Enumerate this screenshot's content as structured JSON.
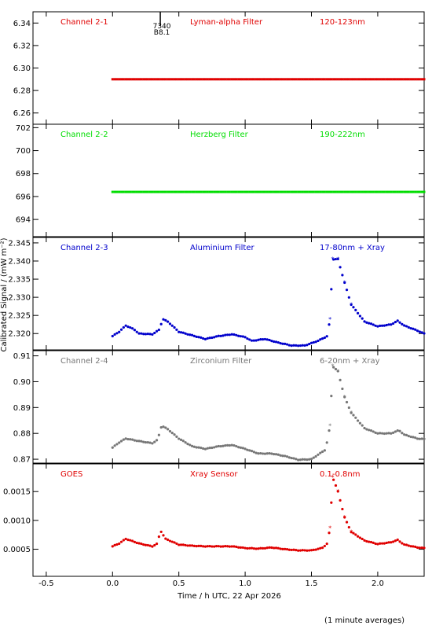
{
  "figure": {
    "xlabel": "Time / h UTC, 22 Apr 2026",
    "ylabel": "Calibrated Signal / (mW m⁻²)",
    "footnote": "(1 minute averages)",
    "xlim": [
      -0.6,
      2.35
    ],
    "xticks": [
      "-0.5",
      "0.0",
      "0.5",
      "1.0",
      "1.5",
      "2.0"
    ],
    "event_marker": {
      "x": 0.36,
      "labels": [
        "7340",
        "B8.1"
      ]
    }
  },
  "chart_data": [
    {
      "type": "scatter",
      "title": "Channel 2-1",
      "filter": "Lyman-alpha Filter",
      "band": "120-123nm",
      "color": "#e00000",
      "ylim": [
        6.25,
        6.35
      ],
      "yticks": [
        "6.26",
        "6.28",
        "6.30",
        "6.32",
        "6.34"
      ],
      "shape": "flat",
      "level": 6.29,
      "x_start": 0.0
    },
    {
      "type": "scatter",
      "title": "Channel 2-2",
      "filter": "Herzberg Filter",
      "band": "190-222nm",
      "color": "#00dd00",
      "ylim": [
        692.5,
        702.3
      ],
      "yticks": [
        "694",
        "696",
        "698",
        "700",
        "702"
      ],
      "shape": "flat",
      "level": 696.4,
      "x_start": 0.0
    },
    {
      "type": "scatter",
      "title": "Channel 2-3",
      "filter": "Aluminium Filter",
      "band": "17-80nm + Xray",
      "color": "#0000cc",
      "ylim": [
        2.3155,
        2.3465
      ],
      "yticks": [
        "2.320",
        "2.325",
        "2.330",
        "2.335",
        "2.340",
        "2.345"
      ],
      "shape": "flare",
      "x_start": 0.0,
      "profile": [
        [
          0.0,
          2.3193
        ],
        [
          0.05,
          2.3205
        ],
        [
          0.1,
          2.3222
        ],
        [
          0.16,
          2.3212
        ],
        [
          0.2,
          2.32
        ],
        [
          0.3,
          2.3198
        ],
        [
          0.35,
          2.321
        ],
        [
          0.38,
          2.324
        ],
        [
          0.42,
          2.3232
        ],
        [
          0.5,
          2.3205
        ],
        [
          0.6,
          2.3195
        ],
        [
          0.7,
          2.3185
        ],
        [
          0.8,
          2.3193
        ],
        [
          0.9,
          2.3198
        ],
        [
          1.0,
          2.319
        ],
        [
          1.05,
          2.318
        ],
        [
          1.15,
          2.3185
        ],
        [
          1.25,
          2.3175
        ],
        [
          1.35,
          2.3167
        ],
        [
          1.45,
          2.3167
        ],
        [
          1.55,
          2.318
        ],
        [
          1.62,
          2.3193
        ],
        [
          1.64,
          2.324
        ],
        [
          1.66,
          2.3405
        ],
        [
          1.7,
          2.3405
        ],
        [
          1.75,
          2.334
        ],
        [
          1.8,
          2.328
        ],
        [
          1.9,
          2.3233
        ],
        [
          2.0,
          2.322
        ],
        [
          2.1,
          2.3225
        ],
        [
          2.15,
          2.3235
        ],
        [
          2.2,
          2.3222
        ],
        [
          2.3,
          2.3208
        ],
        [
          2.35,
          2.32
        ]
      ]
    },
    {
      "type": "scatter",
      "title": "Channel 2-4",
      "filter": "Zirconium Filter",
      "band": "6-20nm + Xray",
      "color": "#777777",
      "ylim": [
        0.8685,
        0.912
      ],
      "yticks": [
        "0.87",
        "0.88",
        "0.89",
        "0.90",
        "0.91"
      ],
      "shape": "flare",
      "x_start": 0.0,
      "profile": [
        [
          0.0,
          0.8745
        ],
        [
          0.05,
          0.8765
        ],
        [
          0.1,
          0.878
        ],
        [
          0.2,
          0.877
        ],
        [
          0.3,
          0.8762
        ],
        [
          0.34,
          0.8775
        ],
        [
          0.37,
          0.883
        ],
        [
          0.42,
          0.8815
        ],
        [
          0.5,
          0.878
        ],
        [
          0.6,
          0.875
        ],
        [
          0.7,
          0.874
        ],
        [
          0.8,
          0.875
        ],
        [
          0.9,
          0.8755
        ],
        [
          1.0,
          0.874
        ],
        [
          1.1,
          0.8722
        ],
        [
          1.2,
          0.8722
        ],
        [
          1.3,
          0.8712
        ],
        [
          1.4,
          0.8698
        ],
        [
          1.5,
          0.87
        ],
        [
          1.6,
          0.8735
        ],
        [
          1.62,
          0.877
        ],
        [
          1.64,
          0.883
        ],
        [
          1.66,
          0.906
        ],
        [
          1.7,
          0.904
        ],
        [
          1.75,
          0.894
        ],
        [
          1.8,
          0.888
        ],
        [
          1.9,
          0.882
        ],
        [
          2.0,
          0.88
        ],
        [
          2.1,
          0.88
        ],
        [
          2.16,
          0.8812
        ],
        [
          2.2,
          0.8795
        ],
        [
          2.3,
          0.878
        ],
        [
          2.35,
          0.8778
        ]
      ]
    },
    {
      "type": "scatter",
      "title": "GOES",
      "filter": "Xray Sensor",
      "band": "0.1-0.8nm",
      "color": "#e00000",
      "ylim": [
        3e-05,
        0.00198
      ],
      "yticks": [
        "0.0005",
        "0.0010",
        "0.0015"
      ],
      "shape": "flare",
      "x_start": 0.0,
      "profile": [
        [
          0.0,
          0.00055
        ],
        [
          0.05,
          0.0006
        ],
        [
          0.1,
          0.00068
        ],
        [
          0.2,
          0.0006
        ],
        [
          0.3,
          0.00055
        ],
        [
          0.34,
          0.0006
        ],
        [
          0.36,
          0.00083
        ],
        [
          0.4,
          0.00068
        ],
        [
          0.5,
          0.00058
        ],
        [
          0.6,
          0.00056
        ],
        [
          0.7,
          0.00055
        ],
        [
          0.8,
          0.00055
        ],
        [
          0.9,
          0.00055
        ],
        [
          1.0,
          0.00052
        ],
        [
          1.1,
          0.00051
        ],
        [
          1.2,
          0.00053
        ],
        [
          1.3,
          0.0005
        ],
        [
          1.4,
          0.00048
        ],
        [
          1.5,
          0.00048
        ],
        [
          1.58,
          0.00052
        ],
        [
          1.62,
          0.0006
        ],
        [
          1.64,
          0.00087
        ],
        [
          1.66,
          0.00175
        ],
        [
          1.7,
          0.0015
        ],
        [
          1.75,
          0.00105
        ],
        [
          1.8,
          0.0008
        ],
        [
          1.9,
          0.00065
        ],
        [
          2.0,
          0.00059
        ],
        [
          2.1,
          0.00062
        ],
        [
          2.15,
          0.00066
        ],
        [
          2.2,
          0.00058
        ],
        [
          2.3,
          0.00053
        ],
        [
          2.35,
          0.00052
        ]
      ]
    }
  ]
}
